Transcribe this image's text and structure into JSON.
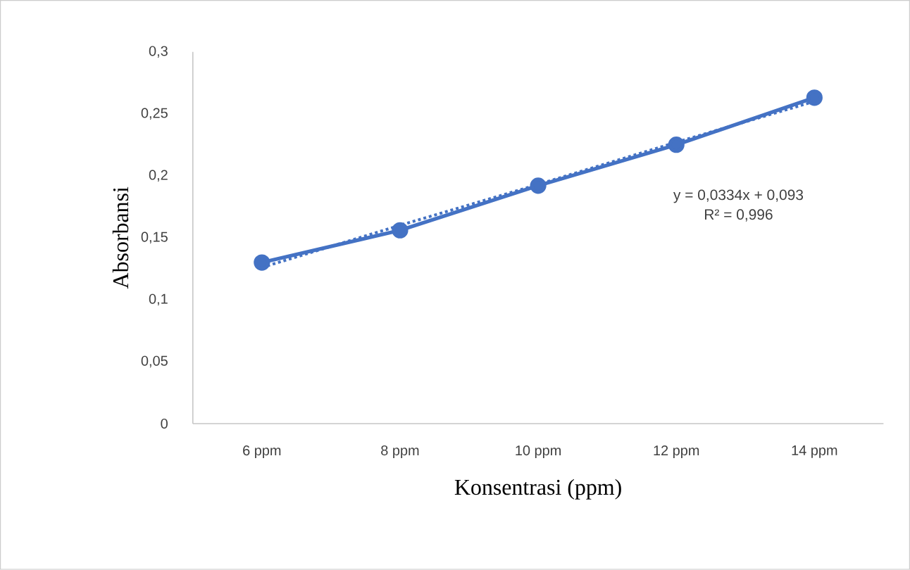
{
  "chart_data": {
    "type": "line",
    "xlabel": "Konsentrasi (ppm)",
    "ylabel": "Absorbansi",
    "categories": [
      "6 ppm",
      "8 ppm",
      "10 ppm",
      "12 ppm",
      "14 ppm"
    ],
    "series": [
      {
        "color": "#4472c4",
        "values": [
          0.13,
          0.156,
          0.192,
          0.225,
          0.263
        ],
        "marker": "circle",
        "line_style": "solid"
      },
      {
        "color": "#4472c4",
        "values": [
          0.126,
          0.16,
          0.193,
          0.227,
          0.26
        ],
        "marker": "none",
        "line_style": "dotted"
      }
    ],
    "annotations": [
      "y = 0,0334x + 0,093",
      "R² = 0,996"
    ],
    "ylim": [
      0,
      0.3
    ],
    "yticks": [
      {
        "value": 0,
        "label": "0"
      },
      {
        "value": 0.05,
        "label": "0,05"
      },
      {
        "value": 0.1,
        "label": "0,1"
      },
      {
        "value": 0.15,
        "label": "0,15"
      },
      {
        "value": 0.2,
        "label": "0,2"
      },
      {
        "value": 0.25,
        "label": "0,25"
      },
      {
        "value": 0.3,
        "label": "0,3"
      }
    ],
    "grid": false
  }
}
